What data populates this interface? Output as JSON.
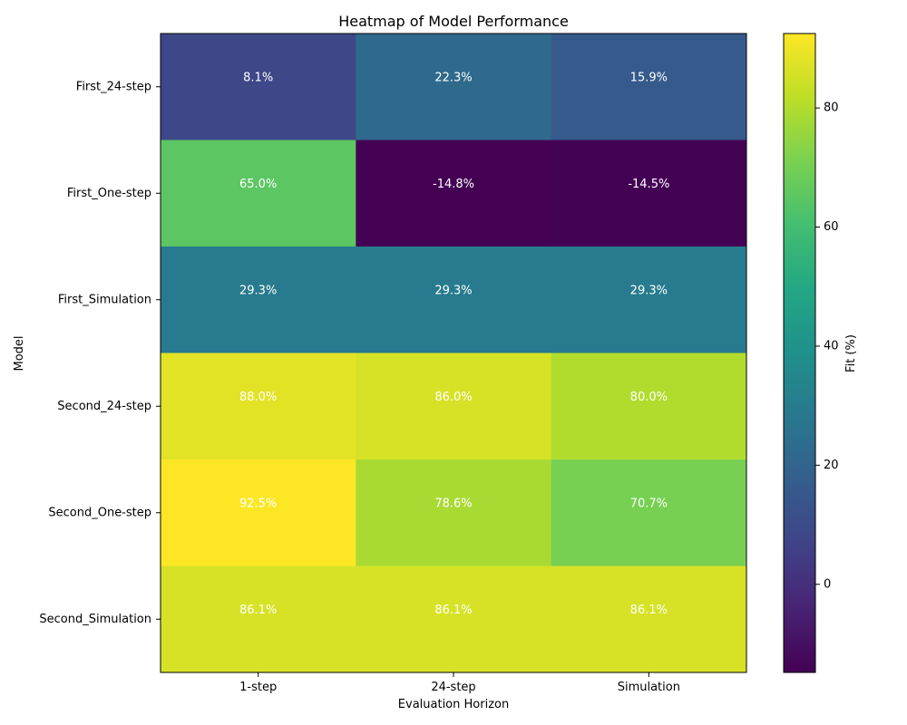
{
  "chart_data": {
    "type": "heatmap",
    "title": "Heatmap of Model Performance",
    "xlabel": "Evaluation Horizon",
    "ylabel": "Model",
    "x_categories": [
      "1-step",
      "24-step",
      "Simulation"
    ],
    "y_categories": [
      "First_24-step",
      "First_One-step",
      "First_Simulation",
      "Second_24-step",
      "Second_One-step",
      "Second_Simulation"
    ],
    "values": [
      [
        8.1,
        22.3,
        15.9
      ],
      [
        65.0,
        -14.8,
        -14.5
      ],
      [
        29.3,
        29.3,
        29.3
      ],
      [
        88.0,
        86.0,
        80.0
      ],
      [
        92.5,
        78.6,
        70.7
      ],
      [
        86.1,
        86.1,
        86.1
      ]
    ],
    "cell_labels": [
      [
        "8.1%",
        "22.3%",
        "15.9%"
      ],
      [
        "65.0%",
        "-14.8%",
        "-14.5%"
      ],
      [
        "29.3%",
        "29.3%",
        "29.3%"
      ],
      [
        "88.0%",
        "86.0%",
        "80.0%"
      ],
      [
        "92.5%",
        "78.6%",
        "70.7%"
      ],
      [
        "86.1%",
        "86.1%",
        "86.1%"
      ]
    ],
    "colorscale": "viridis",
    "color_range": [
      -14.8,
      92.5
    ],
    "colorbar": {
      "label": "Fit (%)",
      "ticks": [
        0,
        20,
        40,
        60,
        80
      ],
      "tick_labels": [
        "0",
        "20",
        "40",
        "60",
        "80"
      ]
    }
  }
}
